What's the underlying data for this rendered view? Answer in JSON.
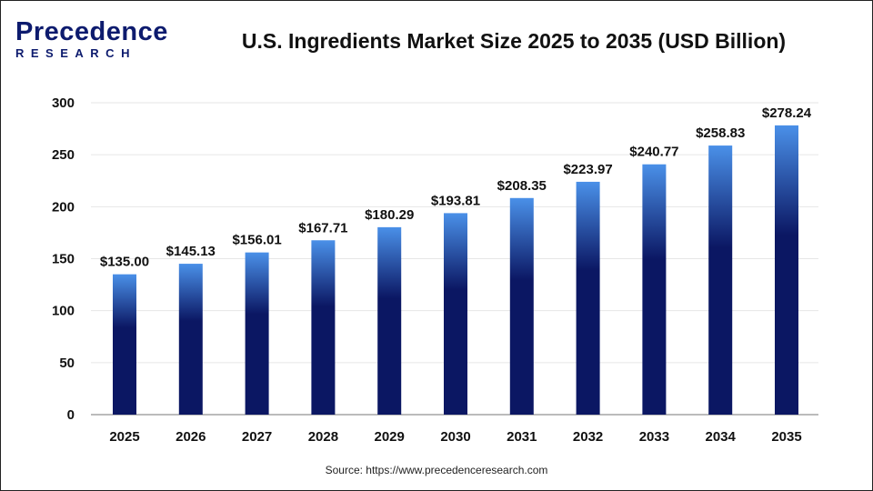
{
  "logo": {
    "text_top": "Precedence",
    "text_bottom": "RESEARCH"
  },
  "source": "Source: https://www.precedenceresearch.com",
  "colors": {
    "bar_top": "#4a90e8",
    "bar_bottom": "#0b1763",
    "grid": "#e6e6e6"
  },
  "chart_data": {
    "type": "bar",
    "title": "U.S. Ingredients Market Size 2025 to 2035 (USD Billion)",
    "xlabel": "",
    "ylabel": "",
    "categories": [
      "2025",
      "2026",
      "2027",
      "2028",
      "2029",
      "2030",
      "2031",
      "2032",
      "2033",
      "2034",
      "2035"
    ],
    "values": [
      135.0,
      145.13,
      156.01,
      167.71,
      180.29,
      193.81,
      208.35,
      223.97,
      240.77,
      258.83,
      278.24
    ],
    "data_labels": [
      "$135.00",
      "$145.13",
      "$156.01",
      "$167.71",
      "$180.29",
      "$193.81",
      "$208.35",
      "$223.97",
      "$240.77",
      "$258.83",
      "$278.24"
    ],
    "ylim": [
      0,
      300
    ],
    "yticks": [
      0,
      50,
      100,
      150,
      200,
      250,
      300
    ],
    "grid": true
  }
}
